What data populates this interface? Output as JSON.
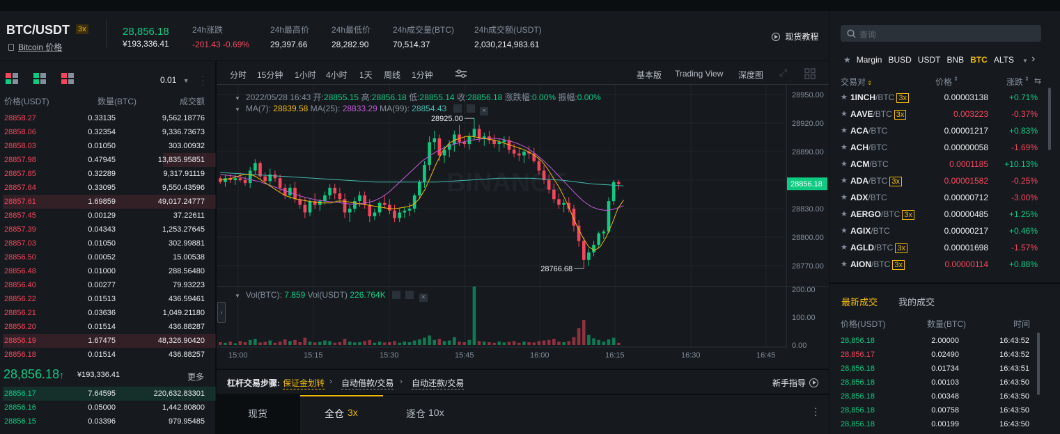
{
  "header": {
    "pair": "BTC/USDT",
    "leverage": "3x",
    "coin_link": "Bitcoin 价格",
    "last_price": "28,856.18",
    "last_price_cny": "¥193,336.41",
    "stats": [
      {
        "label": "24h涨跌",
        "value": "-201.43 -0.69%",
        "color": "#f6465d"
      },
      {
        "label": "24h最高价",
        "value": "29,397.66",
        "color": "#eaecef"
      },
      {
        "label": "24h最低价",
        "value": "28,282.90",
        "color": "#eaecef"
      },
      {
        "label": "24h成交量(BTC)",
        "value": "70,514.37",
        "color": "#eaecef"
      },
      {
        "label": "24h成交额(USDT)",
        "value": "2,030,214,983.61",
        "color": "#eaecef"
      }
    ],
    "tutorial": "现货教程"
  },
  "orderbook": {
    "precision": "0.01",
    "headers": {
      "price": "价格(USDT)",
      "qty": "数量(BTC)",
      "total": "成交额"
    },
    "asks": [
      {
        "price": "28858.27",
        "qty": "0.33135",
        "total": "9,562.18776",
        "depth": 0
      },
      {
        "price": "28858.06",
        "qty": "0.32354",
        "total": "9,336.73673",
        "depth": 0
      },
      {
        "price": "28858.03",
        "qty": "0.01050",
        "total": "303.00932",
        "depth": 0
      },
      {
        "price": "28857.98",
        "qty": "0.47945",
        "total": "13,835.95851",
        "depth": 0.25
      },
      {
        "price": "28857.85",
        "qty": "0.32289",
        "total": "9,317.91119",
        "depth": 0
      },
      {
        "price": "28857.64",
        "qty": "0.33095",
        "total": "9,550.43596",
        "depth": 0
      },
      {
        "price": "28857.61",
        "qty": "1.69859",
        "total": "49,017.24777",
        "depth": 1
      },
      {
        "price": "28857.45",
        "qty": "0.00129",
        "total": "37.22611",
        "depth": 0
      },
      {
        "price": "28857.39",
        "qty": "0.04343",
        "total": "1,253.27645",
        "depth": 0
      },
      {
        "price": "28857.03",
        "qty": "0.01050",
        "total": "302.99881",
        "depth": 0
      },
      {
        "price": "28856.50",
        "qty": "0.00052",
        "total": "15.00538",
        "depth": 0
      },
      {
        "price": "28856.48",
        "qty": "0.01000",
        "total": "288.56480",
        "depth": 0
      },
      {
        "price": "28856.40",
        "qty": "0.00277",
        "total": "79.93223",
        "depth": 0
      },
      {
        "price": "28856.22",
        "qty": "0.01513",
        "total": "436.59461",
        "depth": 0
      },
      {
        "price": "28856.21",
        "qty": "0.03636",
        "total": "1,049.21180",
        "depth": 0
      },
      {
        "price": "28856.20",
        "qty": "0.01514",
        "total": "436.88287",
        "depth": 0
      },
      {
        "price": "28856.19",
        "qty": "1.67475",
        "total": "48,326.90420",
        "depth": 1
      },
      {
        "price": "28856.18",
        "qty": "0.01514",
        "total": "436.88257",
        "depth": 0
      }
    ],
    "mid_price": "28,856.18",
    "mid_arrow": "↑",
    "mid_cny": "¥193,336.41",
    "more": "更多",
    "bids": [
      {
        "price": "28856.17",
        "qty": "7.64595",
        "total": "220,632.83301",
        "depth": 1
      },
      {
        "price": "28856.16",
        "qty": "0.05000",
        "total": "1,442.80800",
        "depth": 0
      },
      {
        "price": "28856.15",
        "qty": "0.03396",
        "total": "979.95485",
        "depth": 0
      }
    ]
  },
  "chart": {
    "intervals": [
      "分时",
      "15分钟",
      "1小时",
      "4小时",
      "1天",
      "周线"
    ],
    "active_interval": "1分钟",
    "views": {
      "basic": "基本版",
      "tv": "Trading View",
      "depth": "深度图"
    },
    "info": {
      "date": "2022/05/28 16:43",
      "open_l": "开:",
      "open": "28855.15",
      "high_l": "高:",
      "high": "28856.18",
      "low_l": "低:",
      "low": "28855.14",
      "close_l": "收:",
      "close": "28856.18",
      "chg_l": "涨跌幅:",
      "chg": "0.00%",
      "amp_l": "振幅:",
      "amp": "0.00%"
    },
    "ma": {
      "ma7_l": "MA(7):",
      "ma7": "28839.58",
      "ma25_l": "MA(25):",
      "ma25": "28833.29",
      "ma99_l": "MA(99):",
      "ma99": "28854.43"
    },
    "vol": {
      "btc_l": "Vol(BTC):",
      "btc": "7.859",
      "usdt_l": "Vol(USDT)",
      "usdt": "226.764K"
    },
    "price_labels": [
      "28950.00",
      "28920.00",
      "28890.00",
      "28860.00",
      "28830.00",
      "28800.00",
      "28770.00"
    ],
    "price_tag": "28856.18",
    "high_mark": "28925.00",
    "low_mark": "28766.68",
    "vol_labels": [
      "200.00",
      "100.00",
      "0.00"
    ],
    "time_labels": [
      "15:00",
      "15:15",
      "15:30",
      "15:45",
      "16:00",
      "16:15",
      "16:30",
      "16:45"
    ],
    "watermark": "BINANCE",
    "colors": {
      "up": "#0ecb81",
      "down": "#f6465d",
      "ma7": "#f0b90b",
      "ma25": "#c45ad8",
      "ma99": "#46b8b0"
    }
  },
  "chart_data": {
    "type": "candlestick",
    "ylim": [
      28760,
      28955
    ],
    "vol_ylim": [
      0,
      200
    ],
    "candles": [
      [
        28862,
        28864,
        28856,
        28858
      ],
      [
        28858,
        28866,
        28853,
        28862
      ],
      [
        28862,
        28866,
        28857,
        28860
      ],
      [
        28860,
        28866,
        28855,
        28862
      ],
      [
        28862,
        28868,
        28858,
        28860
      ],
      [
        28860,
        28864,
        28854,
        28857
      ],
      [
        28857,
        28874,
        28852,
        28870
      ],
      [
        28870,
        28882,
        28866,
        28878
      ],
      [
        28878,
        28880,
        28860,
        28864
      ],
      [
        28864,
        28868,
        28856,
        28859
      ],
      [
        28859,
        28872,
        28853,
        28866
      ],
      [
        28866,
        28870,
        28858,
        28862
      ],
      [
        28862,
        28866,
        28848,
        28852
      ],
      [
        28852,
        28856,
        28840,
        28844
      ],
      [
        28844,
        28856,
        28840,
        28852
      ],
      [
        28852,
        28858,
        28836,
        28840
      ],
      [
        28840,
        28846,
        28830,
        28834
      ],
      [
        28834,
        28842,
        28820,
        28826
      ],
      [
        28826,
        28840,
        28822,
        28838
      ],
      [
        28838,
        28846,
        28830,
        28834
      ],
      [
        28834,
        28840,
        28828,
        28838
      ],
      [
        28838,
        28848,
        28834,
        28844
      ],
      [
        28844,
        28856,
        28840,
        28852
      ],
      [
        28852,
        28856,
        28840,
        28846
      ],
      [
        28846,
        28852,
        28836,
        28840
      ],
      [
        28840,
        28846,
        28820,
        28826
      ],
      [
        28826,
        28834,
        28816,
        28830
      ],
      [
        28830,
        28842,
        28826,
        28838
      ],
      [
        28838,
        28848,
        28832,
        28844
      ],
      [
        28844,
        28848,
        28830,
        28834
      ],
      [
        28834,
        28840,
        28816,
        28822
      ],
      [
        28822,
        28830,
        28818,
        28826
      ],
      [
        28826,
        28838,
        28822,
        28836
      ],
      [
        28836,
        28844,
        28830,
        28834
      ],
      [
        28834,
        28840,
        28824,
        28828
      ],
      [
        28828,
        28834,
        28816,
        28820
      ],
      [
        28820,
        28830,
        28816,
        28826
      ],
      [
        28826,
        28832,
        28820,
        28828
      ],
      [
        28828,
        28836,
        28822,
        28830
      ],
      [
        28830,
        28846,
        28826,
        28844
      ],
      [
        28844,
        28860,
        28840,
        28858
      ],
      [
        28858,
        28880,
        28852,
        28876
      ],
      [
        28876,
        28906,
        28870,
        28900
      ],
      [
        28900,
        28912,
        28892,
        28904
      ],
      [
        28904,
        28908,
        28880,
        28886
      ],
      [
        28886,
        28896,
        28878,
        28892
      ],
      [
        28892,
        28902,
        28884,
        28898
      ],
      [
        28898,
        28912,
        28890,
        28908
      ],
      [
        28908,
        28918,
        28896,
        28900
      ],
      [
        28900,
        28906,
        28894,
        28898
      ],
      [
        28898,
        28910,
        28892,
        28906
      ],
      [
        28906,
        28925,
        28902,
        28914
      ],
      [
        28914,
        28918,
        28900,
        28904
      ],
      [
        28904,
        28910,
        28896,
        28906
      ],
      [
        28906,
        28912,
        28898,
        28902
      ],
      [
        28902,
        28908,
        28894,
        28898
      ],
      [
        28898,
        28904,
        28890,
        28900
      ],
      [
        28900,
        28906,
        28894,
        28902
      ],
      [
        28902,
        28906,
        28888,
        28892
      ],
      [
        28892,
        28898,
        28884,
        28888
      ],
      [
        28888,
        28894,
        28880,
        28886
      ],
      [
        28886,
        28892,
        28878,
        28890
      ],
      [
        28890,
        28896,
        28882,
        28888
      ],
      [
        28888,
        28894,
        28878,
        28880
      ],
      [
        28880,
        28884,
        28866,
        28870
      ],
      [
        28870,
        28876,
        28856,
        28860
      ],
      [
        28860,
        28866,
        28846,
        28850
      ],
      [
        28850,
        28856,
        28836,
        28840
      ],
      [
        28840,
        28846,
        28830,
        28834
      ],
      [
        28834,
        28840,
        28826,
        28836
      ],
      [
        28836,
        28842,
        28826,
        28830
      ],
      [
        28830,
        28834,
        28806,
        28812
      ],
      [
        28812,
        28818,
        28790,
        28796
      ],
      [
        28796,
        28800,
        28767,
        28776
      ],
      [
        28776,
        28788,
        28770,
        28784
      ],
      [
        28784,
        28796,
        28780,
        28792
      ],
      [
        28792,
        28806,
        28788,
        28804
      ],
      [
        28804,
        28808,
        28798,
        28806
      ],
      [
        28806,
        28842,
        28804,
        28838
      ],
      [
        28838,
        28860,
        28834,
        28858
      ],
      [
        28858,
        28860,
        28850,
        28856
      ]
    ],
    "volumes": [
      10,
      8,
      12,
      6,
      14,
      10,
      18,
      22,
      9,
      11,
      16,
      8,
      12,
      20,
      14,
      18,
      10,
      26,
      12,
      9,
      11,
      16,
      14,
      8,
      10,
      22,
      12,
      9,
      10,
      14,
      18,
      8,
      12,
      9,
      10,
      14,
      8,
      12,
      10,
      16,
      20,
      26,
      34,
      18,
      22,
      14,
      16,
      28,
      12,
      10,
      18,
      210,
      14,
      12,
      10,
      8,
      12,
      9,
      11,
      14,
      8,
      12,
      10,
      9,
      14,
      16,
      18,
      22,
      12,
      10,
      14,
      28,
      60,
      90,
      36,
      24,
      18,
      12,
      20,
      26,
      8
    ],
    "ma7": [
      28860,
      28861,
      28862,
      28864,
      28866,
      28866,
      28864,
      28860,
      28856,
      28852,
      28848,
      28844,
      28842,
      28840,
      28839,
      28838,
      28837,
      28836,
      28836,
      28836,
      28838,
      28838,
      28837,
      28836,
      28835,
      28834,
      28833,
      28832,
      28831,
      28830,
      28830,
      28831,
      28832,
      28834,
      28840,
      28850,
      28864,
      28878,
      28890,
      28898,
      28902,
      28904,
      28906,
      28906,
      28905,
      28904,
      28903,
      28902,
      28900,
      28898,
      28896,
      28894,
      28892,
      28889,
      28885,
      28880,
      28872,
      28862,
      28852,
      28840,
      28826,
      28812,
      28800,
      28790,
      28786,
      28790,
      28800,
      28814,
      28830,
      28839
    ],
    "ma25": [
      28866,
      28865,
      28864,
      28862,
      28860,
      28858,
      28855,
      28852,
      28849,
      28846,
      28843,
      28841,
      28839,
      28838,
      28837,
      28836,
      28835,
      28835,
      28836,
      28838,
      28842,
      28848,
      28856,
      28864,
      28872,
      28880,
      28886,
      28891,
      28895,
      28898,
      28900,
      28902,
      28903,
      28904,
      28904,
      28903,
      28901,
      28898,
      28894,
      28888,
      28881,
      28873,
      28864,
      28855,
      28846,
      28838,
      28832,
      28829,
      28828,
      28830,
      28833
    ],
    "ma99": [
      28868,
      28867,
      28866,
      28865,
      28864,
      28863,
      28862,
      28861,
      28860,
      28859,
      28858,
      28858,
      28858,
      28858,
      28858,
      28859,
      28860,
      28861,
      28862,
      28862,
      28862,
      28861,
      28860,
      28858,
      28856,
      28855,
      28854
    ]
  },
  "strip": {
    "label": "杠杆交易步骤:",
    "steps": [
      "保证金划转",
      "自动借款/交易",
      "自动还款/交易"
    ],
    "guide": "新手指导"
  },
  "trade_tabs": [
    {
      "label": "现货",
      "badge": ""
    },
    {
      "label": "全仓",
      "badge": "3x"
    },
    {
      "label": "逐仓",
      "badge": "10x"
    }
  ],
  "market": {
    "search_placeholder": "查询",
    "tabs": [
      "Margin",
      "BUSD",
      "USDT",
      "BNB",
      "BTC",
      "ALTS"
    ],
    "active_tab": "BTC",
    "headers": {
      "pair": "交易对",
      "price": "价格",
      "change": "涨跌"
    },
    "rows": [
      {
        "base": "1INCH",
        "quote": "/BTC",
        "lev": "3x",
        "price": "0.00003138",
        "pc": "#eaecef",
        "change": "+0.71%",
        "cc": "#0ecb81"
      },
      {
        "base": "AAVE",
        "quote": "/BTC",
        "lev": "3x",
        "price": "0.003223",
        "pc": "#f6465d",
        "change": "-0.37%",
        "cc": "#f6465d"
      },
      {
        "base": "ACA",
        "quote": "/BTC",
        "lev": "",
        "price": "0.00001217",
        "pc": "#eaecef",
        "change": "+0.83%",
        "cc": "#0ecb81"
      },
      {
        "base": "ACH",
        "quote": "/BTC",
        "lev": "",
        "price": "0.00000058",
        "pc": "#eaecef",
        "change": "-1.69%",
        "cc": "#f6465d"
      },
      {
        "base": "ACM",
        "quote": "/BTC",
        "lev": "",
        "price": "0.0001185",
        "pc": "#f6465d",
        "change": "+10.13%",
        "cc": "#0ecb81"
      },
      {
        "base": "ADA",
        "quote": "/BTC",
        "lev": "3x",
        "price": "0.00001582",
        "pc": "#f6465d",
        "change": "-0.25%",
        "cc": "#f6465d"
      },
      {
        "base": "ADX",
        "quote": "/BTC",
        "lev": "",
        "price": "0.00000712",
        "pc": "#eaecef",
        "change": "-3.00%",
        "cc": "#f6465d"
      },
      {
        "base": "AERGO",
        "quote": "/BTC",
        "lev": "3x",
        "price": "0.00000485",
        "pc": "#eaecef",
        "change": "+1.25%",
        "cc": "#0ecb81"
      },
      {
        "base": "AGIX",
        "quote": "/BTC",
        "lev": "",
        "price": "0.00000217",
        "pc": "#eaecef",
        "change": "+0.46%",
        "cc": "#0ecb81"
      },
      {
        "base": "AGLD",
        "quote": "/BTC",
        "lev": "3x",
        "price": "0.00001698",
        "pc": "#eaecef",
        "change": "-1.57%",
        "cc": "#f6465d"
      },
      {
        "base": "AION",
        "quote": "/BTC",
        "lev": "3x",
        "price": "0.00000114",
        "pc": "#f6465d",
        "change": "+0.88%",
        "cc": "#0ecb81"
      }
    ]
  },
  "trades": {
    "tabs": [
      "最新成交",
      "我的成交"
    ],
    "headers": {
      "price": "价格(USDT)",
      "qty": "数量(BTC)",
      "time": "时间"
    },
    "rows": [
      {
        "price": "28,856.18",
        "qty": "2.00000",
        "time": "16:43:52",
        "c": "#0ecb81"
      },
      {
        "price": "28,856.17",
        "qty": "0.02490",
        "time": "16:43:52",
        "c": "#f6465d"
      },
      {
        "price": "28,856.18",
        "qty": "0.01734",
        "time": "16:43:51",
        "c": "#0ecb81"
      },
      {
        "price": "28,856.18",
        "qty": "0.00103",
        "time": "16:43:50",
        "c": "#0ecb81"
      },
      {
        "price": "28,856.18",
        "qty": "0.00348",
        "time": "16:43:50",
        "c": "#0ecb81"
      },
      {
        "price": "28,856.18",
        "qty": "0.00758",
        "time": "16:43:50",
        "c": "#0ecb81"
      },
      {
        "price": "28,856.18",
        "qty": "0.00199",
        "time": "16:43:50",
        "c": "#0ecb81"
      }
    ]
  }
}
